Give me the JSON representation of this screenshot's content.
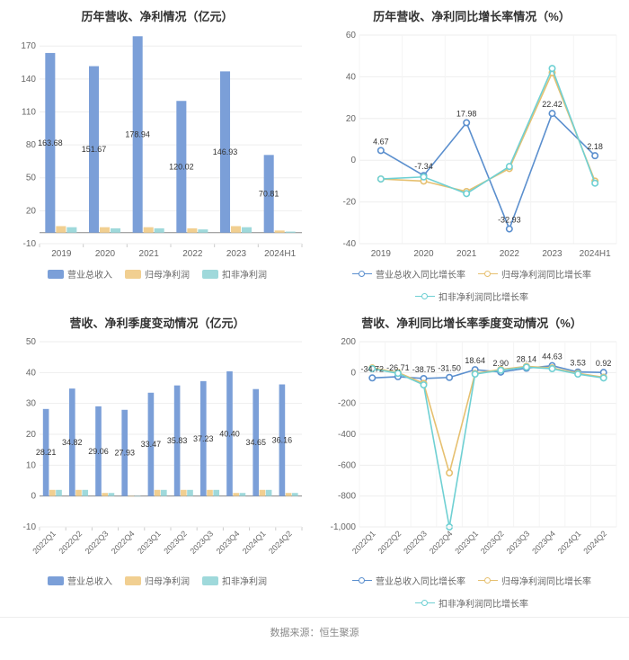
{
  "footer": "数据来源：恒生聚源",
  "colors": {
    "background": "#ffffff",
    "grid": "#eeeeee",
    "axis": "#888888",
    "text": "#666666",
    "bar_revenue": "#7b9fd8",
    "bar_profit": "#f1cf91",
    "bar_nonrecur": "#9fd9db",
    "line_revenue": "#5b8fce",
    "line_profit": "#e6c070",
    "line_nonrecur": "#6fd0d3"
  },
  "panel1": {
    "title": "历年营收、净利情况（亿元）",
    "type": "bar",
    "categories": [
      "2019",
      "2020",
      "2021",
      "2022",
      "2023",
      "2024H1"
    ],
    "series": [
      {
        "name": "营业总收入",
        "color_key": "bar_revenue",
        "values": [
          163.68,
          151.67,
          178.94,
          120.02,
          146.93,
          70.81
        ]
      },
      {
        "name": "归母净利润",
        "color_key": "bar_profit",
        "values": [
          6,
          5,
          5,
          4,
          6,
          2
        ]
      },
      {
        "name": "扣非净利润",
        "color_key": "bar_nonrecur",
        "values": [
          5,
          4,
          4,
          3,
          5,
          1
        ]
      }
    ],
    "value_labels": [
      "163.68",
      "151.67",
      "178.94",
      "120.02",
      "146.93",
      "70.81"
    ],
    "ylim": [
      -10,
      180
    ],
    "ytick_step": 30,
    "label_fontsize": 9,
    "title_fontsize": 13
  },
  "panel2": {
    "title": "历年营收、净利同比增长率情况（%）",
    "type": "line",
    "categories": [
      "2019",
      "2020",
      "2021",
      "2022",
      "2023",
      "2024H1"
    ],
    "series": [
      {
        "name": "营业总收入同比增长率",
        "color_key": "line_revenue",
        "values": [
          4.67,
          -7.34,
          17.98,
          -32.93,
          22.42,
          2.18
        ]
      },
      {
        "name": "归母净利润同比增长率",
        "color_key": "line_profit",
        "values": [
          -9,
          -10,
          -15,
          -4,
          42,
          -10
        ]
      },
      {
        "name": "扣非净利润同比增长率",
        "color_key": "line_nonrecur",
        "values": [
          -9,
          -8,
          -16,
          -3,
          44,
          -11
        ]
      }
    ],
    "point_labels": [
      {
        "cat": "2019",
        "val": 4.67,
        "text": "4.67"
      },
      {
        "cat": "2020",
        "val": -7.34,
        "text": "-7.34"
      },
      {
        "cat": "2021",
        "val": 17.98,
        "text": "17.98"
      },
      {
        "cat": "2022",
        "val": -32.93,
        "text": "-32.93"
      },
      {
        "cat": "2023",
        "val": 22.42,
        "text": "22.42"
      },
      {
        "cat": "2024H1",
        "val": 2.18,
        "text": "2.18"
      }
    ],
    "ylim": [
      -40,
      60
    ],
    "ytick_step": 20,
    "label_fontsize": 9,
    "title_fontsize": 13
  },
  "panel3": {
    "title": "营收、净利季度变动情况（亿元）",
    "type": "bar",
    "categories": [
      "2022Q1",
      "2022Q2",
      "2022Q3",
      "2022Q4",
      "2023Q1",
      "2023Q2",
      "2023Q3",
      "2023Q4",
      "2024Q1",
      "2024Q2"
    ],
    "series": [
      {
        "name": "营业总收入",
        "color_key": "bar_revenue",
        "values": [
          28.21,
          34.82,
          29.06,
          27.93,
          33.47,
          35.83,
          37.23,
          40.4,
          34.65,
          36.16
        ]
      },
      {
        "name": "归母净利润",
        "color_key": "bar_profit",
        "values": [
          2,
          2,
          1,
          0,
          2,
          2,
          2,
          1,
          2,
          1
        ]
      },
      {
        "name": "扣非净利润",
        "color_key": "bar_nonrecur",
        "values": [
          2,
          2,
          1,
          0,
          2,
          2,
          2,
          1,
          2,
          1
        ]
      }
    ],
    "value_labels": [
      "28.21",
      "34.82",
      "29.06",
      "27.93",
      "33.47",
      "35.83",
      "37.23",
      "40.40",
      "34.65",
      "36.16"
    ],
    "ylim": [
      -10,
      50
    ],
    "ytick_step": 10,
    "label_fontsize": 9,
    "title_fontsize": 13,
    "rotate_x": true
  },
  "panel4": {
    "title": "营收、净利同比增长率季度变动情况（%）",
    "type": "line",
    "categories": [
      "2022Q1",
      "2022Q2",
      "2022Q3",
      "2022Q4",
      "2023Q1",
      "2023Q2",
      "2023Q3",
      "2023Q4",
      "2024Q1",
      "2024Q2"
    ],
    "series": [
      {
        "name": "营业总收入同比增长率",
        "color_key": "line_revenue",
        "values": [
          -34.72,
          -26.71,
          -38.75,
          -31.5,
          18.64,
          2.9,
          28.14,
          44.63,
          3.53,
          0.92
        ]
      },
      {
        "name": "归母净利润同比增长率",
        "color_key": "line_profit",
        "values": [
          30,
          0,
          -70,
          -650,
          -5,
          20,
          40,
          30,
          -5,
          -30
        ]
      },
      {
        "name": "扣非净利润同比增长率",
        "color_key": "line_nonrecur",
        "values": [
          25,
          -5,
          -80,
          -1000,
          -10,
          15,
          35,
          25,
          -10,
          -35
        ]
      }
    ],
    "point_labels": [
      {
        "cat": "2022Q1",
        "val": -34.72,
        "text": "-34.72"
      },
      {
        "cat": "2022Q2",
        "val": -26.71,
        "text": "-26.71"
      },
      {
        "cat": "2022Q3",
        "val": -38.75,
        "text": "-38.75"
      },
      {
        "cat": "2022Q4",
        "val": -31.5,
        "text": "-31.50"
      },
      {
        "cat": "2023Q1",
        "val": 18.64,
        "text": "18.64"
      },
      {
        "cat": "2023Q2",
        "val": 2.9,
        "text": "2.90"
      },
      {
        "cat": "2023Q3",
        "val": 28.14,
        "text": "28.14"
      },
      {
        "cat": "2023Q4",
        "val": 44.63,
        "text": "44.63"
      },
      {
        "cat": "2024Q1",
        "val": 3.53,
        "text": "3.53"
      },
      {
        "cat": "2024Q2",
        "val": 0.92,
        "text": "0.92"
      }
    ],
    "ylim": [
      -1000,
      200
    ],
    "ytick_step": 200,
    "label_fontsize": 9,
    "title_fontsize": 13,
    "rotate_x": true
  }
}
